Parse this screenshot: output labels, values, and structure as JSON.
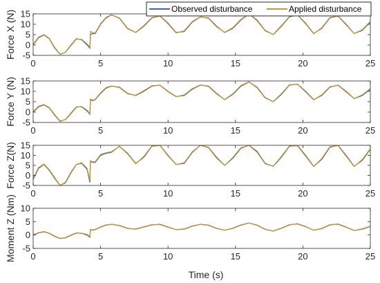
{
  "figure": {
    "xlabel": "Time (s)"
  },
  "legend": {
    "placement": "top-right",
    "entries": [
      {
        "label": "Observed disturbance",
        "color": "#3f64ae"
      },
      {
        "label": "Applied disturbance",
        "color": "#c8962e"
      }
    ]
  },
  "chart_data": [
    {
      "type": "line",
      "ylabel": "Force X (N)",
      "xlim": [
        0,
        25
      ],
      "ylim": [
        -5,
        15
      ],
      "xticks": [
        0,
        5,
        10,
        15,
        20,
        25
      ],
      "yticks": [
        -5,
        0,
        5,
        10,
        15
      ],
      "yticklabels": [
        "-5",
        "0",
        "5",
        "10",
        "15"
      ],
      "series": [
        {
          "name": "Observed disturbance",
          "x": [
            0,
            0.4,
            0.8,
            1.2,
            1.6,
            2.0,
            2.4,
            2.8,
            3.2,
            3.6,
            4.0,
            4.2,
            4.25,
            4.4,
            4.6,
            5.0,
            5.4,
            5.8,
            6.4,
            7.0,
            7.6,
            8.2,
            8.8,
            9.4,
            10.0,
            10.6,
            11.2,
            11.8,
            12.4,
            13.0,
            13.6,
            14.2,
            14.8,
            15.4,
            16.0,
            16.6,
            17.2,
            17.8,
            18.4,
            19.0,
            19.6,
            20.2,
            20.8,
            21.4,
            22.0,
            22.6,
            23.2,
            23.8,
            24.4,
            25.0
          ],
          "y": [
            0,
            3.5,
            4.8,
            3,
            -1.5,
            -4.5,
            -3.5,
            0,
            3,
            2.5,
            0,
            -1.5,
            5,
            5.5,
            5.5,
            10,
            13,
            14.5,
            13,
            8,
            6,
            9,
            13,
            14,
            10.5,
            6,
            6.5,
            11,
            13.5,
            13,
            9,
            6,
            8,
            12,
            15,
            12,
            7,
            5,
            9,
            13.5,
            14.5,
            10.5,
            5.5,
            8,
            13,
            14,
            10,
            5.5,
            7,
            11
          ]
        },
        {
          "name": "Applied disturbance",
          "x": [
            0,
            0.4,
            0.8,
            1.2,
            1.6,
            2.0,
            2.4,
            2.8,
            3.2,
            3.6,
            4.0,
            4.2,
            4.25,
            4.4,
            4.6,
            5.0,
            5.4,
            5.8,
            6.4,
            7.0,
            7.6,
            8.2,
            8.8,
            9.4,
            10.0,
            10.6,
            11.2,
            11.8,
            12.4,
            13.0,
            13.6,
            14.2,
            14.8,
            15.4,
            16.0,
            16.6,
            17.2,
            17.8,
            18.4,
            19.0,
            19.6,
            20.2,
            20.8,
            21.4,
            22.0,
            22.6,
            23.2,
            23.8,
            24.4,
            25.0
          ],
          "y": [
            0.3,
            3.8,
            5,
            3.2,
            -1.2,
            -4.4,
            -3.6,
            -0.3,
            2.8,
            2.7,
            0.5,
            -1,
            6.5,
            6,
            5.8,
            10.3,
            13.3,
            14.6,
            12.8,
            7.8,
            6.1,
            9.3,
            13.2,
            13.9,
            10.2,
            5.8,
            6.8,
            11.3,
            13.6,
            12.8,
            8.7,
            6.1,
            8.3,
            12.3,
            15,
            11.7,
            6.8,
            5.1,
            9.3,
            13.7,
            14.4,
            10.2,
            5.4,
            8.3,
            13.2,
            13.9,
            9.7,
            5.5,
            7.3,
            11.3
          ]
        }
      ]
    },
    {
      "type": "line",
      "ylabel": "Force Y (N)",
      "xlim": [
        0,
        25
      ],
      "ylim": [
        -5,
        15
      ],
      "xticks": [
        0,
        5,
        10,
        15,
        20,
        25
      ],
      "yticks": [
        -5,
        0,
        5,
        10,
        15
      ],
      "yticklabels": [
        "-5",
        "0",
        "5",
        "10",
        "15"
      ],
      "series": [
        {
          "name": "Observed disturbance",
          "x": [
            0,
            0.4,
            0.8,
            1.2,
            1.6,
            2.0,
            2.4,
            2.8,
            3.2,
            3.6,
            4.0,
            4.2,
            4.25,
            4.4,
            4.6,
            5.0,
            5.4,
            5.8,
            6.4,
            7.0,
            7.6,
            8.2,
            8.8,
            9.4,
            10.0,
            10.6,
            11.2,
            11.8,
            12.4,
            13.0,
            13.6,
            14.2,
            14.8,
            15.4,
            16.0,
            16.6,
            17.2,
            17.8,
            18.4,
            19.0,
            19.6,
            20.2,
            20.8,
            21.4,
            22.0,
            22.6,
            23.2,
            23.8,
            24.4,
            25.0
          ],
          "y": [
            0,
            2.5,
            3.5,
            2,
            -1.5,
            -4.5,
            -3.5,
            -0.5,
            2.5,
            2.5,
            0.5,
            -1,
            6,
            5.5,
            6,
            9,
            11.5,
            12.5,
            12,
            9,
            8,
            10,
            12.5,
            13,
            10,
            7.5,
            8,
            11,
            13,
            12.5,
            9,
            6,
            8.5,
            12.5,
            14.5,
            12,
            7,
            5,
            8.5,
            13,
            13.5,
            10,
            6,
            8,
            12,
            13,
            10,
            6.5,
            8,
            11
          ]
        },
        {
          "name": "Applied disturbance",
          "x": [
            0,
            0.4,
            0.8,
            1.2,
            1.6,
            2.0,
            2.4,
            2.8,
            3.2,
            3.6,
            4.0,
            4.2,
            4.25,
            4.4,
            4.6,
            5.0,
            5.4,
            5.8,
            6.4,
            7.0,
            7.6,
            8.2,
            8.8,
            9.4,
            10.0,
            10.6,
            11.2,
            11.8,
            12.4,
            13.0,
            13.6,
            14.2,
            14.8,
            15.4,
            16.0,
            16.6,
            17.2,
            17.8,
            18.4,
            19.0,
            19.6,
            20.2,
            20.8,
            21.4,
            22.0,
            22.6,
            23.2,
            23.8,
            24.4,
            25.0
          ],
          "y": [
            0.3,
            2.8,
            3.7,
            2.2,
            -1.2,
            -4.3,
            -3.6,
            -0.8,
            2.3,
            2.7,
            0.9,
            -0.6,
            6.3,
            5.7,
            6.2,
            9.3,
            11.8,
            12.6,
            11.8,
            8.8,
            8.1,
            10.3,
            12.7,
            12.9,
            9.8,
            7.4,
            8.3,
            11.3,
            13.1,
            12.3,
            8.7,
            6.1,
            8.8,
            12.8,
            14.6,
            11.7,
            6.8,
            5.1,
            8.8,
            13.2,
            13.4,
            9.7,
            5.9,
            8.3,
            12.2,
            12.9,
            9.7,
            6.5,
            8.3,
            11.3
          ]
        }
      ]
    },
    {
      "type": "line",
      "ylabel": "Force Z(N)",
      "xlim": [
        0,
        25
      ],
      "ylim": [
        -5,
        15
      ],
      "xticks": [
        0,
        5,
        10,
        15,
        20,
        25
      ],
      "yticks": [
        -5,
        0,
        5,
        10,
        15
      ],
      "yticklabels": [
        "-5",
        "0",
        "5",
        "10",
        "15"
      ],
      "series": [
        {
          "name": "Observed disturbance",
          "x": [
            0,
            0.4,
            0.8,
            1.2,
            1.6,
            2.0,
            2.4,
            2.8,
            3.2,
            3.6,
            4.0,
            4.2,
            4.25,
            4.4,
            4.6,
            5.0,
            5.4,
            5.8,
            6.4,
            7.0,
            7.6,
            8.2,
            8.8,
            9.4,
            10.0,
            10.6,
            11.2,
            11.8,
            12.4,
            13.0,
            13.6,
            14.2,
            14.8,
            15.4,
            16.0,
            16.6,
            17.2,
            17.8,
            18.4,
            19.0,
            19.6,
            20.2,
            20.8,
            21.4,
            22.0,
            22.6,
            23.2,
            23.8,
            24.4,
            25.0
          ],
          "y": [
            -2,
            3.5,
            5.5,
            2.5,
            -1.5,
            -5,
            -3.5,
            1.5,
            5.5,
            6,
            3,
            -3.5,
            7,
            6.5,
            6.5,
            10,
            11,
            11.5,
            14.5,
            11,
            6,
            9,
            14.5,
            15,
            10,
            5.5,
            6,
            11.5,
            15,
            14,
            9,
            5,
            8.5,
            13.5,
            15,
            12,
            6,
            4.5,
            9,
            14.5,
            15,
            10,
            4.5,
            8,
            14,
            15,
            10,
            4.5,
            7.5,
            13
          ]
        },
        {
          "name": "Applied disturbance",
          "x": [
            0,
            0.4,
            0.8,
            1.2,
            1.6,
            2.0,
            2.4,
            2.8,
            3.2,
            3.6,
            4.0,
            4.2,
            4.25,
            4.4,
            4.6,
            5.0,
            5.4,
            5.8,
            6.4,
            7.0,
            7.6,
            8.2,
            8.8,
            9.4,
            10.0,
            10.6,
            11.2,
            11.8,
            12.4,
            13.0,
            13.6,
            14.2,
            14.8,
            15.4,
            16.0,
            16.6,
            17.2,
            17.8,
            18.4,
            19.0,
            19.6,
            20.2,
            20.8,
            21.4,
            22.0,
            22.6,
            23.2,
            23.8,
            24.4,
            25.0
          ],
          "y": [
            -1.5,
            3.9,
            5.7,
            2.8,
            -1.1,
            -4.9,
            -3.8,
            1.1,
            5.4,
            6.3,
            3.5,
            -2.5,
            7.3,
            6.8,
            6.8,
            10.4,
            11.3,
            11.8,
            14.4,
            10.7,
            5.8,
            9.4,
            14.7,
            14.9,
            9.7,
            5.4,
            6.3,
            11.8,
            15,
            13.8,
            8.6,
            5,
            8.9,
            13.8,
            14.9,
            11.6,
            5.8,
            4.6,
            9.4,
            14.7,
            14.8,
            9.6,
            4.4,
            8.4,
            14.3,
            14.9,
            9.6,
            4.4,
            7.9,
            13.3
          ]
        }
      ]
    },
    {
      "type": "line",
      "ylabel": "Moment Z (Nm)",
      "xlim": [
        0,
        25
      ],
      "ylim": [
        -5,
        10
      ],
      "xticks": [
        0,
        5,
        10,
        15,
        20,
        25
      ],
      "yticks": [
        -5,
        0,
        5,
        10
      ],
      "yticklabels": [
        "-5",
        "0",
        "5",
        "10"
      ],
      "series": [
        {
          "name": "Observed disturbance",
          "x": [
            0,
            0.4,
            0.8,
            1.2,
            1.6,
            2.0,
            2.4,
            2.8,
            3.2,
            3.6,
            4.0,
            4.2,
            4.25,
            4.4,
            4.6,
            5.0,
            5.4,
            5.8,
            6.4,
            7.0,
            7.6,
            8.2,
            8.8,
            9.4,
            10.0,
            10.6,
            11.2,
            11.8,
            12.4,
            13.0,
            13.6,
            14.2,
            14.8,
            15.4,
            16.0,
            16.6,
            17.2,
            17.8,
            18.4,
            19.0,
            19.6,
            20.2,
            20.8,
            21.4,
            22.0,
            22.6,
            23.2,
            23.8,
            24.4,
            25.0
          ],
          "y": [
            0,
            0.8,
            1.2,
            0.6,
            -0.5,
            -1.3,
            -1,
            0,
            0.8,
            0.6,
            0,
            -0.8,
            2,
            1.8,
            2,
            3,
            3.7,
            4,
            3.6,
            2.5,
            2.2,
            3,
            3.8,
            4,
            3,
            2,
            2.2,
            3.3,
            4,
            3.7,
            2.5,
            1.8,
            2.5,
            3.7,
            4.5,
            3.7,
            2.2,
            1.5,
            2.5,
            3.8,
            4.2,
            3.2,
            1.8,
            2.4,
            3.8,
            4.1,
            3,
            1.7,
            2.2,
            3.2
          ]
        },
        {
          "name": "Applied disturbance",
          "x": [
            0,
            0.4,
            0.8,
            1.2,
            1.6,
            2.0,
            2.4,
            2.8,
            3.2,
            3.6,
            4.0,
            4.2,
            4.25,
            4.4,
            4.6,
            5.0,
            5.4,
            5.8,
            6.4,
            7.0,
            7.6,
            8.2,
            8.8,
            9.4,
            10.0,
            10.6,
            11.2,
            11.8,
            12.4,
            13.0,
            13.6,
            14.2,
            14.8,
            15.4,
            16.0,
            16.6,
            17.2,
            17.8,
            18.4,
            19.0,
            19.6,
            20.2,
            20.8,
            21.4,
            22.0,
            22.6,
            23.2,
            23.8,
            24.4,
            25.0
          ],
          "y": [
            0.1,
            0.9,
            1.3,
            0.7,
            -0.4,
            -1.2,
            -1.1,
            -0.1,
            0.7,
            0.7,
            0.2,
            -0.5,
            2.1,
            1.9,
            2.1,
            3.1,
            3.8,
            4,
            3.5,
            2.4,
            2.3,
            3.1,
            3.9,
            3.9,
            2.9,
            2,
            2.3,
            3.4,
            4,
            3.6,
            2.4,
            1.8,
            2.6,
            3.8,
            4.5,
            3.6,
            2.1,
            1.5,
            2.6,
            3.9,
            4.1,
            3.1,
            1.8,
            2.5,
            3.9,
            4,
            2.9,
            1.7,
            2.3,
            3.3
          ]
        }
      ]
    }
  ]
}
